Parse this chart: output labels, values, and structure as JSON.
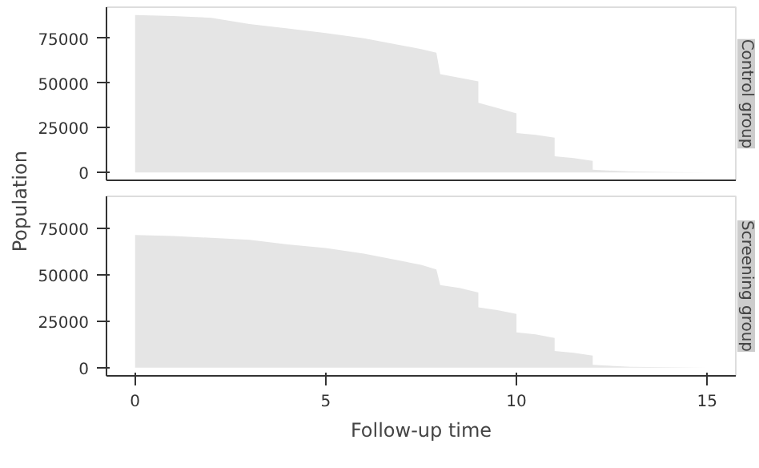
{
  "chart_data": [
    {
      "type": "area",
      "title": "Control group",
      "ylabel": "Population",
      "tick_labels": "y",
      "grid": false,
      "x": [
        0,
        1,
        2,
        3,
        4,
        5,
        6,
        7,
        7.5,
        7.9,
        8,
        8.5,
        9,
        9,
        9.5,
        10,
        10,
        10.5,
        11,
        11,
        11.5,
        12,
        12,
        13,
        14,
        15
      ],
      "series": [
        {
          "color": "#e5e5e5",
          "values": [
            88000,
            87500,
            86500,
            83000,
            80500,
            78000,
            75000,
            71000,
            69000,
            67000,
            55000,
            53000,
            51000,
            39000,
            36000,
            33000,
            22000,
            21000,
            19500,
            9000,
            8000,
            6500,
            1500,
            500,
            200,
            0
          ]
        }
      ],
      "xlim": [
        -0.75,
        15.75
      ],
      "xticks": [
        0,
        5,
        10,
        15
      ],
      "ylim": [
        -4400,
        92400
      ],
      "yticks": [
        0,
        25000,
        50000,
        75000
      ]
    },
    {
      "type": "area",
      "title": "Screening group",
      "xlabel": "Follow-up time",
      "grid": false,
      "x": [
        0,
        1,
        2,
        3,
        4,
        5,
        6,
        7,
        7.5,
        7.9,
        8,
        8.5,
        9,
        9,
        9.5,
        10,
        10,
        10.5,
        11,
        11,
        11.5,
        12,
        12,
        13,
        14,
        15
      ],
      "series": [
        {
          "color": "#e5e5e5",
          "values": [
            71500,
            71000,
            70000,
            69000,
            66500,
            64500,
            61500,
            57500,
            55500,
            53000,
            44500,
            43000,
            40500,
            32500,
            31000,
            29000,
            19000,
            18000,
            16000,
            9000,
            8000,
            6500,
            1500,
            500,
            200,
            0
          ]
        }
      ],
      "xlim": [
        -0.75,
        15.75
      ],
      "xticks": [
        0,
        5,
        10,
        15
      ],
      "ylim": [
        -4400,
        92400
      ],
      "yticks": [
        0,
        25000,
        50000,
        75000
      ]
    }
  ]
}
